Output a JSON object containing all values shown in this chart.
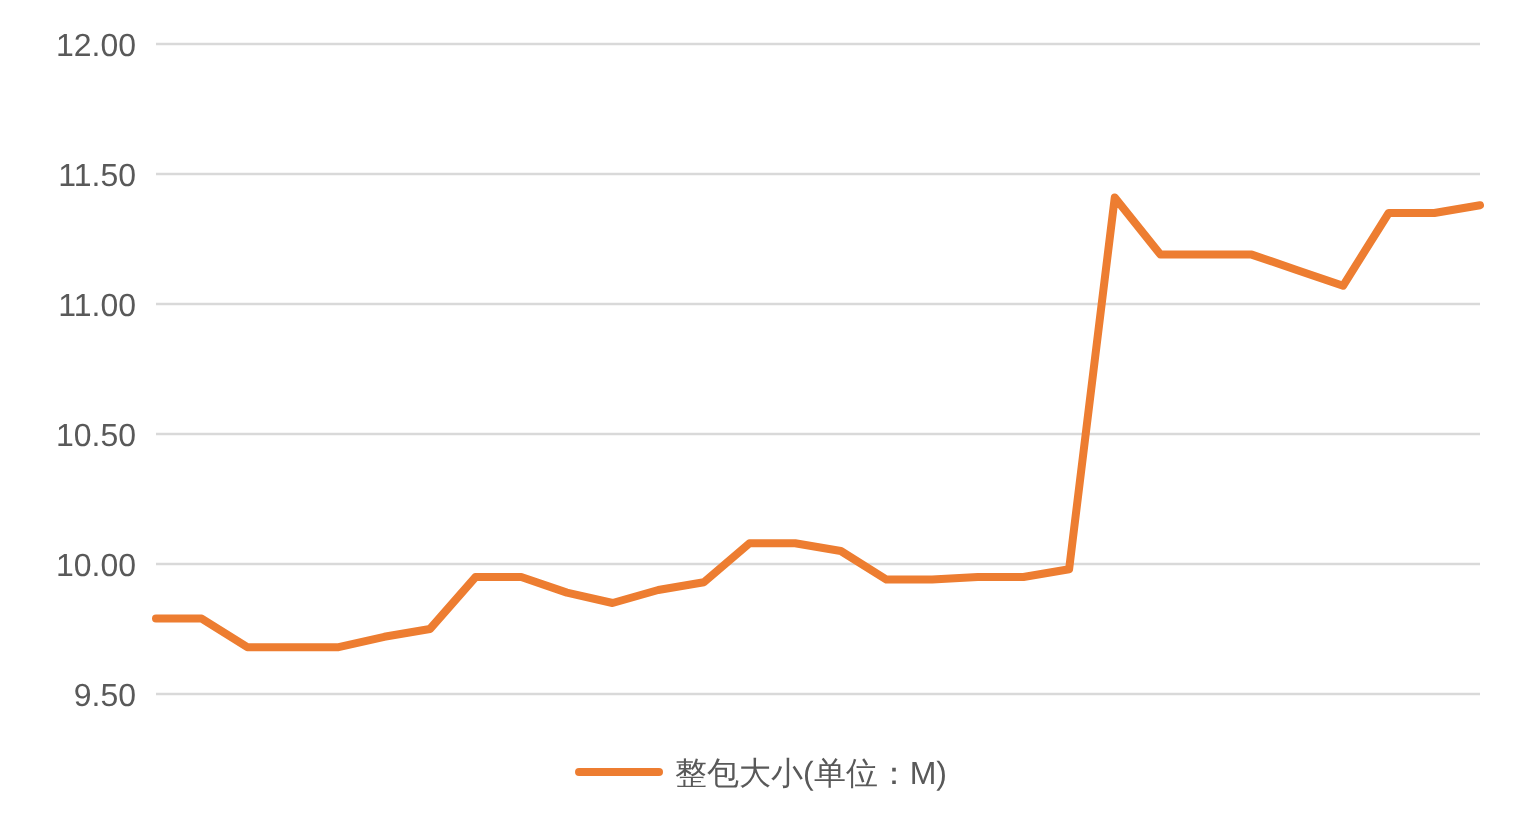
{
  "chart_data": {
    "type": "line",
    "categories": [
      null,
      null,
      null,
      null,
      null,
      null,
      null,
      null,
      null,
      null,
      null,
      null,
      null,
      null,
      null,
      null,
      null,
      null,
      null,
      null,
      null,
      null,
      null,
      null,
      null,
      null,
      null,
      null,
      null,
      null
    ],
    "series": [
      {
        "name": "整包大小(单位：M)",
        "color": "#ed7d31",
        "values": [
          9.79,
          9.79,
          9.68,
          9.68,
          9.68,
          9.72,
          9.75,
          9.95,
          9.95,
          9.89,
          9.85,
          9.9,
          9.93,
          10.08,
          10.08,
          10.05,
          9.94,
          9.94,
          9.95,
          9.95,
          9.98,
          11.41,
          11.19,
          11.19,
          11.19,
          11.13,
          11.07,
          11.35,
          11.35,
          11.38
        ]
      }
    ],
    "ylim": [
      9.5,
      12.0
    ],
    "yticks": [
      {
        "value": 9.5,
        "label": "9.50"
      },
      {
        "value": 10.0,
        "label": "10.00"
      },
      {
        "value": 10.5,
        "label": "10.50"
      },
      {
        "value": 11.0,
        "label": "11.00"
      },
      {
        "value": 11.5,
        "label": "11.50"
      },
      {
        "value": 12.0,
        "label": "12.00"
      }
    ],
    "grid": "y",
    "legend": "bottom",
    "marker": "none",
    "line_style": "solid"
  }
}
